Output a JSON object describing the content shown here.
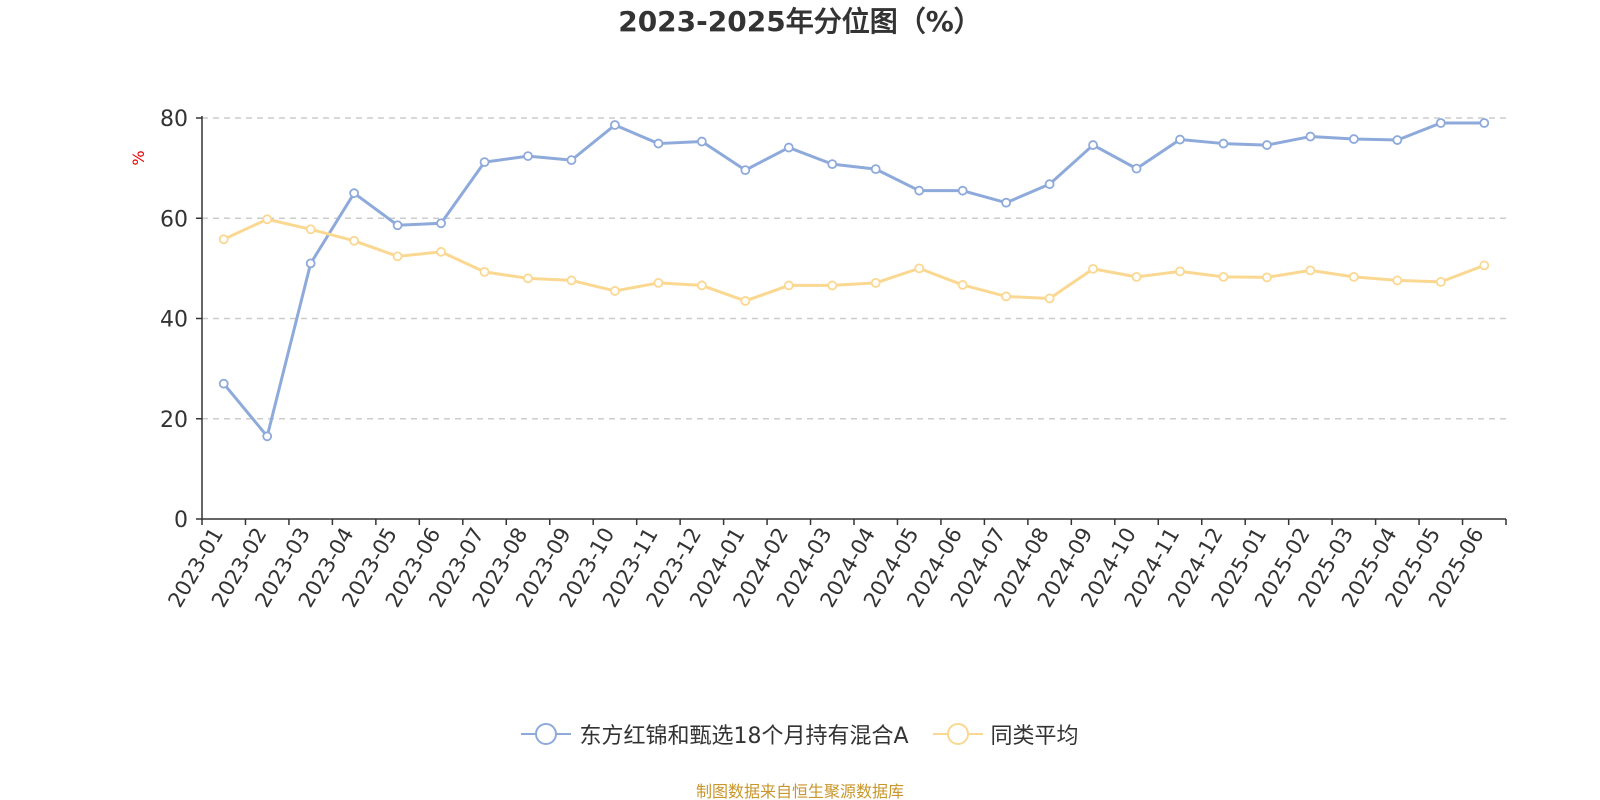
{
  "chart_data": {
    "type": "line",
    "title": "2023-2025年分位图（%）",
    "ylabel": "%",
    "xlabel": "",
    "ylim": [
      0,
      80
    ],
    "yticks": [
      0,
      20,
      40,
      60,
      80
    ],
    "grid": "horizontal-dashed",
    "legend_position": "bottom",
    "categories": [
      "2023-01",
      "2023-02",
      "2023-03",
      "2023-04",
      "2023-05",
      "2023-06",
      "2023-07",
      "2023-08",
      "2023-09",
      "2023-10",
      "2023-11",
      "2023-12",
      "2024-01",
      "2024-02",
      "2024-03",
      "2024-04",
      "2024-05",
      "2024-06",
      "2024-07",
      "2024-08",
      "2024-09",
      "2024-10",
      "2024-11",
      "2024-12",
      "2025-01",
      "2025-02",
      "2025-03",
      "2025-04",
      "2025-05",
      "2025-06"
    ],
    "series": [
      {
        "name": "东方红锦和甄选18个月持有混合A",
        "color": "#8eaadb",
        "values": [
          27.0,
          16.5,
          51.0,
          65.0,
          58.6,
          59.0,
          71.2,
          72.4,
          71.6,
          78.6,
          74.9,
          75.3,
          69.6,
          74.1,
          70.8,
          69.8,
          65.5,
          65.5,
          63.1,
          66.8,
          74.6,
          69.9,
          75.7,
          74.9,
          74.6,
          76.3,
          75.8,
          75.6,
          79.0,
          79.0
        ]
      },
      {
        "name": "同类平均",
        "color": "#fad892",
        "values": [
          55.8,
          59.8,
          57.8,
          55.5,
          52.4,
          53.3,
          49.3,
          48.0,
          47.6,
          45.5,
          47.1,
          46.6,
          43.5,
          46.6,
          46.6,
          47.1,
          50.0,
          46.7,
          44.4,
          44.0,
          49.9,
          48.3,
          49.4,
          48.3,
          48.2,
          49.6,
          48.3,
          47.6,
          47.3,
          50.6
        ]
      }
    ]
  },
  "source_note": "制图数据来自恒生聚源数据库"
}
